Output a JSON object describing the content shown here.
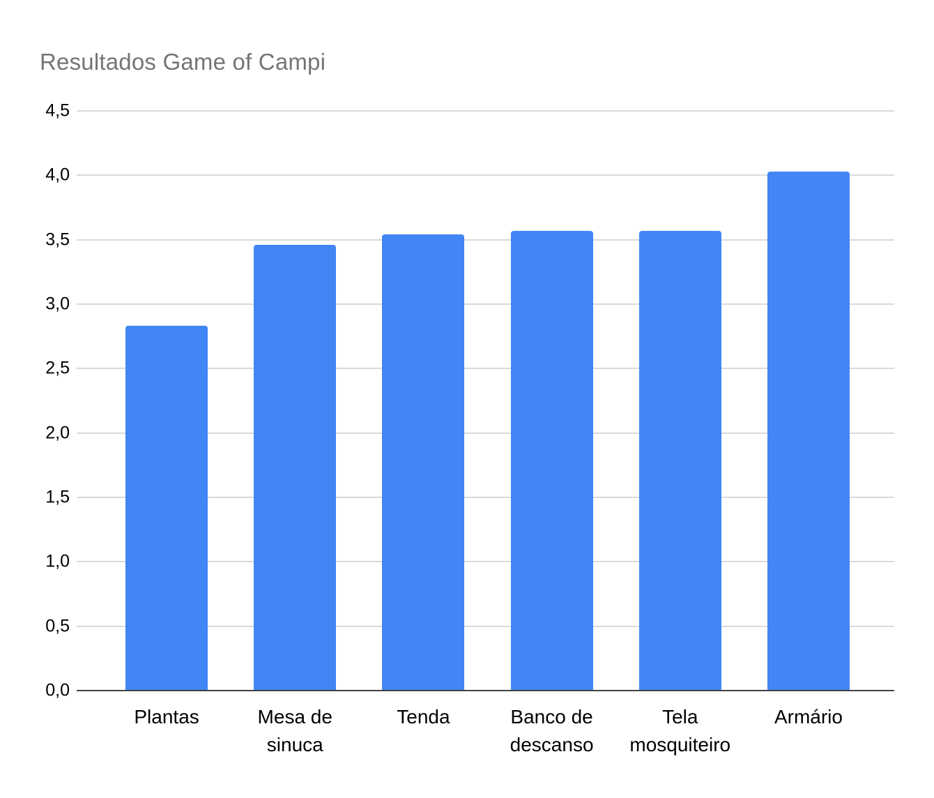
{
  "chart_data": {
    "type": "bar",
    "title": "Resultados Game of Campi",
    "categories": [
      "Plantas",
      "Mesa de sinuca",
      "Tenda",
      "Banco de descanso",
      "Tela mosquiteiro",
      "Armário"
    ],
    "values": [
      2.83,
      3.46,
      3.54,
      3.57,
      3.57,
      4.03
    ],
    "xlabel": "",
    "ylabel": "",
    "ylim": [
      0,
      4.5
    ],
    "ytick_step": 0.5,
    "ytick_labels": [
      "0,0",
      "0,5",
      "1,0",
      "1,5",
      "2,0",
      "2,5",
      "3,0",
      "3,5",
      "4,0",
      "4,5"
    ],
    "decimal_separator": ",",
    "grid": true,
    "legend_position": "none",
    "colors": {
      "bar": "#4285F4",
      "title_text": "#757575",
      "gridline": "#d9d9d9",
      "axis_line": "#424242",
      "tick_text": "#000000"
    }
  }
}
